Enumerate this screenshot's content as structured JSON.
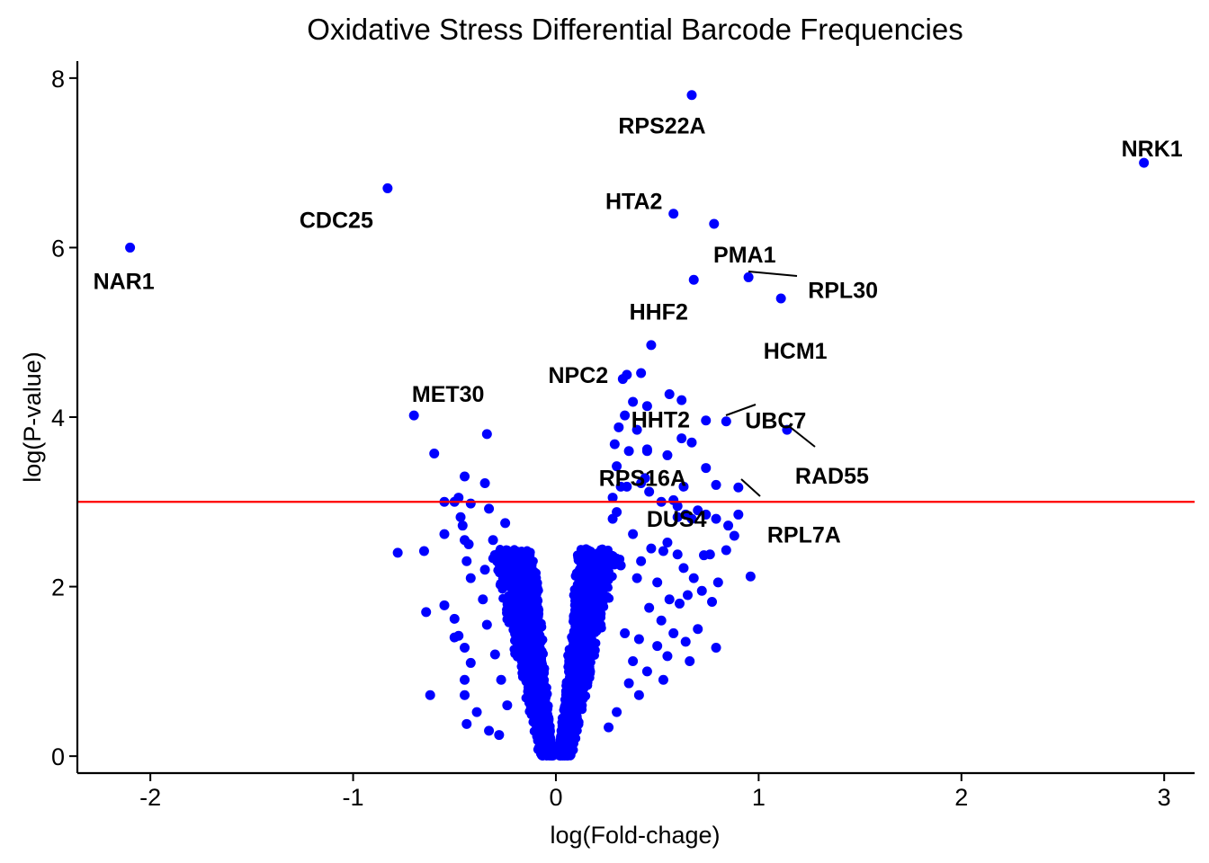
{
  "chart_data": {
    "type": "scatter",
    "title": "Oxidative Stress Differential Barcode Frequencies",
    "xlabel": "log(Fold-chage)",
    "ylabel": "log(P-value)",
    "xlim": [
      -2.36,
      3.15
    ],
    "ylim": [
      -0.2,
      8.2
    ],
    "xticks": [
      -2,
      -1,
      0,
      1,
      2,
      3
    ],
    "yticks": [
      0,
      2,
      4,
      6,
      8
    ],
    "grid": false,
    "legend": "none",
    "point_color": "#0000ff",
    "threshold": {
      "y": 3.0,
      "color": "#ff0000"
    },
    "labeled_points": [
      {
        "gene": "RPS22A",
        "x": 0.67,
        "y": 7.8
      },
      {
        "gene": "NRK1",
        "x": 2.9,
        "y": 7.0
      },
      {
        "gene": "CDC25",
        "x": -0.83,
        "y": 6.7
      },
      {
        "gene": "HTA2",
        "x": 0.58,
        "y": 6.4
      },
      {
        "gene": "PMA1",
        "x": 0.78,
        "y": 6.28
      },
      {
        "gene": "NAR1",
        "x": -2.1,
        "y": 6.0
      },
      {
        "gene": "RPL30",
        "x": 0.95,
        "y": 5.65
      },
      {
        "gene": "HHF2",
        "x": 0.68,
        "y": 5.62
      },
      {
        "gene": "HCM1",
        "x": 1.11,
        "y": 5.4
      },
      {
        "gene": "NPC2",
        "x": 0.35,
        "y": 4.5
      },
      {
        "gene": "HHT2",
        "x": 0.45,
        "y": 4.13
      },
      {
        "gene": "MET30",
        "x": -0.7,
        "y": 4.02
      },
      {
        "gene": "UBC7",
        "x": 0.84,
        "y": 3.95
      },
      {
        "gene": "RAD55",
        "x": 1.14,
        "y": 3.85
      },
      {
        "gene": "RPS16A",
        "x": 0.45,
        "y": 3.6
      },
      {
        "gene": "RPL7A",
        "x": 0.9,
        "y": 3.17
      },
      {
        "gene": "DUS4",
        "x": 0.6,
        "y": 2.95
      }
    ],
    "other_points": [
      [
        0.47,
        4.85
      ],
      [
        0.42,
        4.52
      ],
      [
        0.33,
        4.45
      ],
      [
        0.38,
        4.18
      ],
      [
        0.56,
        4.27
      ],
      [
        0.62,
        4.2
      ],
      [
        0.74,
        3.96
      ],
      [
        0.34,
        4.02
      ],
      [
        0.4,
        3.85
      ],
      [
        0.31,
        3.88
      ],
      [
        0.62,
        3.75
      ],
      [
        0.67,
        3.7
      ],
      [
        0.55,
        3.55
      ],
      [
        0.29,
        3.68
      ],
      [
        0.45,
        3.62
      ],
      [
        0.36,
        3.6
      ],
      [
        0.3,
        3.42
      ],
      [
        0.44,
        3.28
      ],
      [
        0.74,
        3.4
      ],
      [
        0.79,
        3.2
      ],
      [
        0.63,
        3.18
      ],
      [
        0.32,
        3.18
      ],
      [
        0.35,
        3.18
      ],
      [
        0.42,
        3.22
      ],
      [
        0.46,
        3.12
      ],
      [
        0.28,
        3.05
      ],
      [
        0.3,
        2.88
      ],
      [
        0.52,
        3.0
      ],
      [
        0.58,
        3.02
      ],
      [
        0.7,
        2.9
      ],
      [
        0.64,
        2.85
      ],
      [
        0.74,
        2.85
      ],
      [
        0.9,
        2.85
      ],
      [
        0.67,
        2.8
      ],
      [
        0.85,
        2.72
      ],
      [
        0.6,
        2.82
      ],
      [
        0.79,
        2.8
      ],
      [
        0.88,
        2.6
      ],
      [
        0.28,
        2.8
      ],
      [
        0.38,
        2.62
      ],
      [
        0.55,
        2.52
      ],
      [
        0.73,
        2.37
      ],
      [
        0.76,
        2.38
      ],
      [
        0.84,
        2.43
      ],
      [
        0.6,
        2.38
      ],
      [
        0.53,
        2.42
      ],
      [
        0.47,
        2.45
      ],
      [
        0.63,
        2.22
      ],
      [
        0.42,
        2.3
      ],
      [
        0.96,
        2.12
      ],
      [
        0.32,
        2.25
      ],
      [
        0.4,
        2.1
      ],
      [
        0.5,
        2.05
      ],
      [
        0.68,
        2.1
      ],
      [
        0.8,
        2.05
      ],
      [
        0.56,
        1.85
      ],
      [
        0.61,
        1.8
      ],
      [
        0.65,
        1.9
      ],
      [
        0.72,
        1.95
      ],
      [
        0.77,
        1.82
      ],
      [
        0.46,
        1.75
      ],
      [
        0.52,
        1.6
      ],
      [
        0.7,
        1.5
      ],
      [
        0.58,
        1.45
      ],
      [
        0.64,
        1.35
      ],
      [
        0.79,
        1.28
      ],
      [
        0.5,
        1.3
      ],
      [
        0.41,
        1.38
      ],
      [
        0.66,
        1.12
      ],
      [
        0.55,
        1.18
      ],
      [
        0.45,
        1.0
      ],
      [
        0.53,
        0.9
      ],
      [
        0.41,
        0.72
      ],
      [
        0.34,
        1.45
      ],
      [
        0.38,
        1.12
      ],
      [
        0.36,
        0.86
      ],
      [
        0.3,
        0.52
      ],
      [
        0.26,
        0.34
      ],
      [
        -0.34,
        3.8
      ],
      [
        -0.6,
        3.57
      ],
      [
        -0.45,
        3.3
      ],
      [
        -0.35,
        3.22
      ],
      [
        -0.5,
        3.0
      ],
      [
        -0.55,
        3.0
      ],
      [
        -0.48,
        3.05
      ],
      [
        -0.42,
        2.98
      ],
      [
        -0.47,
        2.82
      ],
      [
        -0.46,
        2.72
      ],
      [
        -0.33,
        2.92
      ],
      [
        -0.55,
        2.62
      ],
      [
        -0.45,
        2.55
      ],
      [
        -0.43,
        2.5
      ],
      [
        -0.25,
        2.75
      ],
      [
        -0.31,
        2.55
      ],
      [
        -0.78,
        2.4
      ],
      [
        -0.65,
        2.42
      ],
      [
        -0.44,
        2.3
      ],
      [
        -0.42,
        2.1
      ],
      [
        -0.35,
        2.2
      ],
      [
        -0.29,
        2.3
      ],
      [
        -0.25,
        2.28
      ],
      [
        -0.64,
        1.7
      ],
      [
        -0.55,
        1.78
      ],
      [
        -0.5,
        1.62
      ],
      [
        -0.48,
        1.42
      ],
      [
        -0.5,
        1.4
      ],
      [
        -0.45,
        1.28
      ],
      [
        -0.42,
        1.1
      ],
      [
        -0.45,
        0.9
      ],
      [
        -0.45,
        0.72
      ],
      [
        -0.62,
        0.72
      ],
      [
        -0.39,
        0.52
      ],
      [
        -0.44,
        0.38
      ],
      [
        -0.33,
        0.3
      ],
      [
        -0.28,
        0.25
      ],
      [
        -0.34,
        1.55
      ],
      [
        -0.3,
        1.2
      ],
      [
        -0.27,
        0.9
      ],
      [
        -0.24,
        0.6
      ],
      [
        -0.36,
        1.85
      ]
    ]
  }
}
